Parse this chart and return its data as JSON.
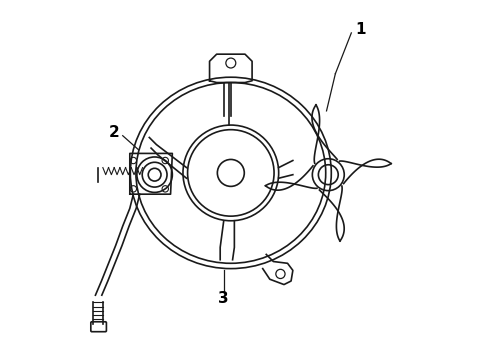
{
  "background_color": "#ffffff",
  "line_color": "#1a1a1a",
  "line_width": 1.2,
  "label_color": "#000000",
  "label_fontsize": 11,
  "figsize": [
    4.9,
    3.6
  ],
  "dpi": 100
}
